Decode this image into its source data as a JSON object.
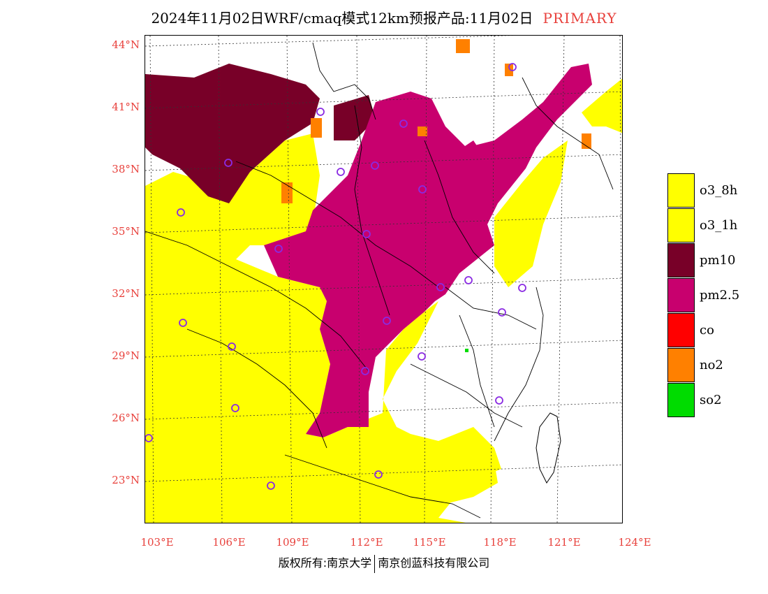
{
  "title": {
    "main": "2024年11月02日WRF/cmaq模式12km预报产品:11月02日",
    "tag": "PRIMARY"
  },
  "axes": {
    "lat_labels": [
      "44°N",
      "41°N",
      "38°N",
      "35°N",
      "32°N",
      "29°N",
      "26°N",
      "23°N"
    ],
    "lon_labels": [
      "103°E",
      "106°E",
      "109°E",
      "112°E",
      "115°E",
      "118°E",
      "121°E",
      "124°E"
    ]
  },
  "legend": {
    "items": [
      {
        "label": "o3_8h",
        "color": "#ffff00"
      },
      {
        "label": "o3_1h",
        "color": "#ffff00"
      },
      {
        "label": "pm10",
        "color": "#780028"
      },
      {
        "label": "pm2.5",
        "color": "#c8006e"
      },
      {
        "label": "co",
        "color": "#ff0000"
      },
      {
        "label": "no2",
        "color": "#ff8000"
      },
      {
        "label": "so2",
        "color": "#00dc00"
      }
    ]
  },
  "footer": {
    "left": "版权所有:南京大学",
    "right": "南京创蓝科技有限公司"
  },
  "colors": {
    "accent_text": "#e8413c",
    "station_marker": "#8a2be2"
  },
  "icons": [
    "station-circle-icon"
  ]
}
